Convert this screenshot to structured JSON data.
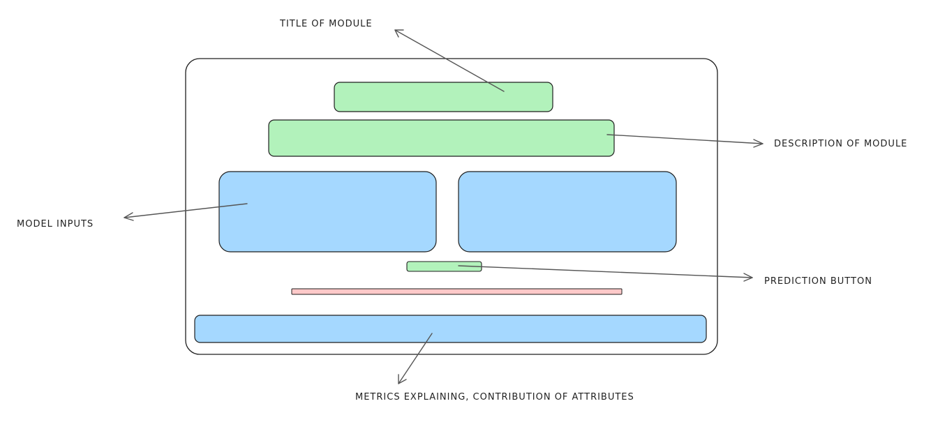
{
  "annotations": {
    "title": "TITLE OF MODULE",
    "description": "DESCRIPTION OF MODULE",
    "inputs": "MODEL INPUTS",
    "prediction": "PREDICTION BUTTON",
    "metrics": "METRICS EXPLAINING, CONTRIBUTION OF ATTRIBUTES"
  },
  "colors": {
    "green_fill": "#b2f2bb",
    "blue_fill": "#a5d8ff",
    "red_fill": "#ffc9c9",
    "stroke": "#1e1e1e",
    "arrow": "#555555"
  }
}
